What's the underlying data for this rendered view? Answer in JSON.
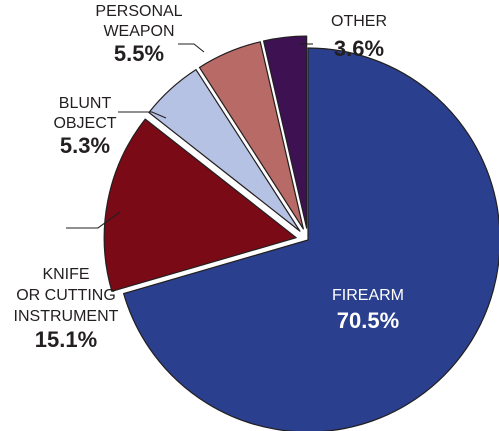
{
  "chart_data": {
    "type": "pie",
    "title": "",
    "slices": [
      {
        "lines": [
          "FIREARM"
        ],
        "pct_label": "70.5%",
        "value": 70.5,
        "color": "#2a3f8d"
      },
      {
        "lines": [
          "KNIFE",
          "OR CUTTING",
          "INSTRUMENT"
        ],
        "pct_label": "15.1%",
        "value": 15.1,
        "color": "#7a0a16"
      },
      {
        "lines": [
          "BLUNT",
          "OBJECT"
        ],
        "pct_label": "5.3%",
        "value": 5.3,
        "color": "#b6c2e3"
      },
      {
        "lines": [
          "PERSONAL",
          "WEAPON"
        ],
        "pct_label": "5.5%",
        "value": 5.5,
        "color": "#b86a66"
      },
      {
        "lines": [
          "OTHER"
        ],
        "pct_label": "3.6%",
        "value": 3.6,
        "color": "#3e1153"
      }
    ],
    "start_angle_deg": 0,
    "direction": "clockwise",
    "edge_color": "#231f20",
    "legend": "none"
  }
}
